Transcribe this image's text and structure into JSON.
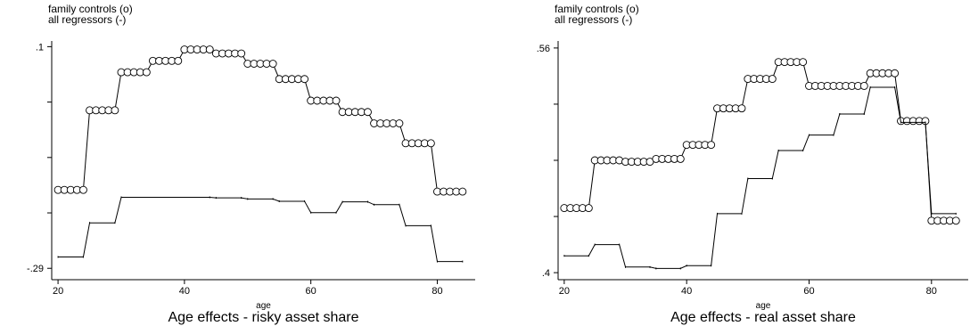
{
  "chart_data": [
    {
      "type": "line",
      "title": "Age effects - risky asset share",
      "xlabel": "age",
      "legend": [
        "family controls (o)",
        "all regressors (-)"
      ],
      "legend_placement": "top-left",
      "xlim": [
        19,
        86
      ],
      "ylim": [
        -0.31,
        0.11
      ],
      "xticks": [
        20,
        40,
        60,
        80
      ],
      "yticks": [
        -0.29,
        0.1
      ],
      "ytick_labels": [
        "-.29",
        ".1"
      ],
      "series": [
        {
          "marker": "circle",
          "x": [
            20,
            21,
            22,
            23,
            24,
            25,
            26,
            27,
            28,
            29,
            30,
            31,
            32,
            33,
            34,
            35,
            36,
            37,
            38,
            39,
            40,
            41,
            42,
            43,
            44,
            45,
            46,
            47,
            48,
            49,
            50,
            51,
            52,
            53,
            54,
            55,
            56,
            57,
            58,
            59,
            60,
            61,
            62,
            63,
            64,
            65,
            66,
            67,
            68,
            69,
            70,
            71,
            72,
            73,
            74,
            75,
            76,
            77,
            78,
            79,
            80,
            81,
            82,
            83,
            84
          ],
          "y": [
            -0.152,
            -0.152,
            -0.152,
            -0.152,
            -0.152,
            -0.012,
            -0.012,
            -0.012,
            -0.012,
            -0.012,
            0.055,
            0.055,
            0.055,
            0.055,
            0.055,
            0.075,
            0.075,
            0.075,
            0.075,
            0.075,
            0.095,
            0.095,
            0.095,
            0.095,
            0.095,
            0.088,
            0.088,
            0.088,
            0.088,
            0.088,
            0.07,
            0.07,
            0.07,
            0.07,
            0.07,
            0.043,
            0.043,
            0.043,
            0.043,
            0.043,
            0.005,
            0.005,
            0.005,
            0.005,
            0.005,
            -0.015,
            -0.015,
            -0.015,
            -0.015,
            -0.015,
            -0.035,
            -0.035,
            -0.035,
            -0.035,
            -0.035,
            -0.07,
            -0.07,
            -0.07,
            -0.07,
            -0.07,
            -0.155,
            -0.155,
            -0.155,
            -0.155,
            -0.155
          ]
        },
        {
          "marker": "none",
          "x": [
            20,
            24,
            25,
            29,
            30,
            44,
            45,
            49,
            50,
            54,
            55,
            59,
            60,
            64,
            65,
            69,
            70,
            74,
            75,
            79,
            80,
            84
          ],
          "y": [
            -0.27,
            -0.27,
            -0.21,
            -0.21,
            -0.165,
            -0.165,
            -0.166,
            -0.166,
            -0.168,
            -0.168,
            -0.172,
            -0.172,
            -0.192,
            -0.192,
            -0.173,
            -0.173,
            -0.178,
            -0.178,
            -0.215,
            -0.215,
            -0.278,
            -0.278
          ]
        }
      ]
    },
    {
      "type": "line",
      "title": "Age effects - real asset share",
      "xlabel": "age",
      "legend": [
        "family controls (o)",
        "all regressors (-)"
      ],
      "legend_placement": "top-left",
      "xlim": [
        19,
        86
      ],
      "ylim": [
        0.395,
        0.565
      ],
      "xticks": [
        20,
        40,
        60,
        80
      ],
      "yticks": [
        0.4,
        0.56
      ],
      "ytick_labels": [
        ".4",
        ".56"
      ],
      "series": [
        {
          "marker": "circle",
          "x": [
            20,
            21,
            22,
            23,
            24,
            25,
            26,
            27,
            28,
            29,
            30,
            31,
            32,
            33,
            34,
            35,
            36,
            37,
            38,
            39,
            40,
            41,
            42,
            43,
            44,
            45,
            46,
            47,
            48,
            49,
            50,
            51,
            52,
            53,
            54,
            55,
            56,
            57,
            58,
            59,
            60,
            61,
            62,
            63,
            64,
            65,
            66,
            67,
            68,
            69,
            70,
            71,
            72,
            73,
            74,
            75,
            76,
            77,
            78,
            79,
            80,
            81,
            82,
            83,
            84
          ],
          "y": [
            0.446,
            0.446,
            0.446,
            0.446,
            0.446,
            0.48,
            0.48,
            0.48,
            0.48,
            0.48,
            0.479,
            0.479,
            0.479,
            0.479,
            0.479,
            0.481,
            0.481,
            0.481,
            0.481,
            0.481,
            0.491,
            0.491,
            0.491,
            0.491,
            0.491,
            0.517,
            0.517,
            0.517,
            0.517,
            0.517,
            0.538,
            0.538,
            0.538,
            0.538,
            0.538,
            0.55,
            0.55,
            0.55,
            0.55,
            0.55,
            0.533,
            0.533,
            0.533,
            0.533,
            0.533,
            0.533,
            0.533,
            0.533,
            0.533,
            0.533,
            0.542,
            0.542,
            0.542,
            0.542,
            0.542,
            0.508,
            0.508,
            0.508,
            0.508,
            0.508,
            0.437,
            0.437,
            0.437,
            0.437,
            0.437
          ]
        },
        {
          "marker": "none",
          "x": [
            20,
            24,
            25,
            29,
            30,
            34,
            35,
            39,
            40,
            44,
            45,
            49,
            50,
            54,
            55,
            59,
            60,
            64,
            65,
            69,
            70,
            74,
            75,
            79,
            80,
            84
          ],
          "y": [
            0.412,
            0.412,
            0.42,
            0.42,
            0.404,
            0.404,
            0.403,
            0.403,
            0.405,
            0.405,
            0.442,
            0.442,
            0.467,
            0.467,
            0.487,
            0.487,
            0.498,
            0.498,
            0.513,
            0.513,
            0.532,
            0.532,
            0.507,
            0.507,
            0.442,
            0.442
          ]
        }
      ]
    }
  ]
}
